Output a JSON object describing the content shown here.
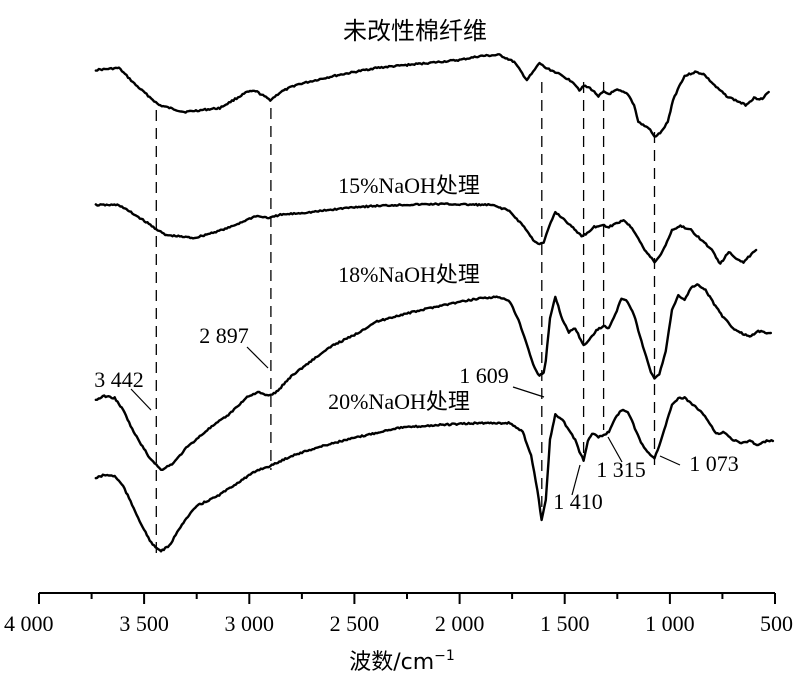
{
  "chart_data": {
    "type": "line",
    "x_axis": {
      "label_text": "波数/cm",
      "label_superscript": "−1",
      "range": [
        4000,
        500
      ],
      "ticks": [
        4000,
        3500,
        3000,
        2500,
        2000,
        1500,
        1000,
        500
      ],
      "tick_labels": [
        "4 000",
        "3 500",
        "3 000",
        "2 500",
        "2 000",
        "1 500",
        "1 000",
        "500"
      ]
    },
    "grid": false,
    "series": [
      {
        "name": "未改性棉纤维",
        "points": [
          [
            3730,
            70
          ],
          [
            3620,
            68
          ],
          [
            3540,
            85
          ],
          [
            3430,
            105
          ],
          [
            3310,
            112
          ],
          [
            3140,
            108
          ],
          [
            3010,
            92
          ],
          [
            2970,
            91
          ],
          [
            2900,
            100
          ],
          [
            2850,
            92
          ],
          [
            2780,
            85
          ],
          [
            2600,
            76
          ],
          [
            2400,
            68
          ],
          [
            2200,
            64
          ],
          [
            2000,
            60
          ],
          [
            1900,
            56
          ],
          [
            1810,
            55
          ],
          [
            1740,
            62
          ],
          [
            1680,
            80
          ],
          [
            1650,
            72
          ],
          [
            1620,
            63
          ],
          [
            1590,
            68
          ],
          [
            1545,
            72
          ],
          [
            1460,
            82
          ],
          [
            1430,
            90
          ],
          [
            1410,
            86
          ],
          [
            1380,
            88
          ],
          [
            1340,
            96
          ],
          [
            1315,
            92
          ],
          [
            1290,
            94
          ],
          [
            1250,
            90
          ],
          [
            1200,
            94
          ],
          [
            1170,
            105
          ],
          [
            1150,
            122
          ],
          [
            1120,
            126
          ],
          [
            1100,
            128
          ],
          [
            1073,
            137
          ],
          [
            1040,
            132
          ],
          [
            1010,
            122
          ],
          [
            985,
            100
          ],
          [
            955,
            86
          ],
          [
            930,
            76
          ],
          [
            880,
            72
          ],
          [
            840,
            74
          ],
          [
            780,
            87
          ],
          [
            730,
            96
          ],
          [
            680,
            101
          ],
          [
            640,
            105
          ],
          [
            600,
            98
          ],
          [
            560,
            99
          ],
          [
            530,
            92
          ]
        ]
      },
      {
        "name": "15%NaOH处理",
        "points": [
          [
            3730,
            205
          ],
          [
            3620,
            205
          ],
          [
            3520,
            218
          ],
          [
            3400,
            235
          ],
          [
            3260,
            238
          ],
          [
            3100,
            228
          ],
          [
            2970,
            216
          ],
          [
            2900,
            218
          ],
          [
            2860,
            215
          ],
          [
            2700,
            212
          ],
          [
            2500,
            207
          ],
          [
            2300,
            205
          ],
          [
            2100,
            204
          ],
          [
            1850,
            205
          ],
          [
            1770,
            210
          ],
          [
            1700,
            225
          ],
          [
            1650,
            240
          ],
          [
            1620,
            244
          ],
          [
            1600,
            243
          ],
          [
            1580,
            230
          ],
          [
            1545,
            212
          ],
          [
            1500,
            220
          ],
          [
            1460,
            228
          ],
          [
            1420,
            236
          ],
          [
            1400,
            234
          ],
          [
            1360,
            227
          ],
          [
            1320,
            225
          ],
          [
            1290,
            227
          ],
          [
            1260,
            224
          ],
          [
            1220,
            220
          ],
          [
            1180,
            228
          ],
          [
            1150,
            238
          ],
          [
            1120,
            250
          ],
          [
            1073,
            262
          ],
          [
            1050,
            257
          ],
          [
            1020,
            245
          ],
          [
            990,
            230
          ],
          [
            950,
            226
          ],
          [
            900,
            230
          ],
          [
            850,
            240
          ],
          [
            800,
            250
          ],
          [
            760,
            264
          ],
          [
            720,
            252
          ],
          [
            690,
            258
          ],
          [
            650,
            262
          ],
          [
            620,
            256
          ],
          [
            590,
            250
          ]
        ]
      },
      {
        "name": "18%NaOH处理",
        "points": [
          [
            3730,
            400
          ],
          [
            3690,
            396
          ],
          [
            3640,
            398
          ],
          [
            3600,
            410
          ],
          [
            3550,
            432
          ],
          [
            3480,
            456
          ],
          [
            3420,
            470
          ],
          [
            3360,
            463
          ],
          [
            3300,
            448
          ],
          [
            3200,
            430
          ],
          [
            3100,
            415
          ],
          [
            3010,
            397
          ],
          [
            2960,
            392
          ],
          [
            2910,
            396
          ],
          [
            2870,
            392
          ],
          [
            2800,
            376
          ],
          [
            2700,
            360
          ],
          [
            2600,
            345
          ],
          [
            2500,
            335
          ],
          [
            2400,
            322
          ],
          [
            2300,
            316
          ],
          [
            2200,
            311
          ],
          [
            2100,
            306
          ],
          [
            2000,
            302
          ],
          [
            1900,
            298
          ],
          [
            1810,
            297
          ],
          [
            1760,
            302
          ],
          [
            1720,
            320
          ],
          [
            1680,
            345
          ],
          [
            1650,
            365
          ],
          [
            1620,
            376
          ],
          [
            1600,
            372
          ],
          [
            1590,
            360
          ],
          [
            1570,
            318
          ],
          [
            1545,
            297
          ],
          [
            1510,
            320
          ],
          [
            1480,
            332
          ],
          [
            1450,
            328
          ],
          [
            1430,
            337
          ],
          [
            1410,
            345
          ],
          [
            1390,
            342
          ],
          [
            1350,
            330
          ],
          [
            1315,
            326
          ],
          [
            1290,
            328
          ],
          [
            1260,
            315
          ],
          [
            1230,
            298
          ],
          [
            1200,
            302
          ],
          [
            1170,
            315
          ],
          [
            1150,
            330
          ],
          [
            1120,
            352
          ],
          [
            1090,
            372
          ],
          [
            1073,
            378
          ],
          [
            1050,
            374
          ],
          [
            1020,
            352
          ],
          [
            990,
            310
          ],
          [
            960,
            295
          ],
          [
            930,
            300
          ],
          [
            900,
            288
          ],
          [
            870,
            284
          ],
          [
            830,
            290
          ],
          [
            790,
            304
          ],
          [
            750,
            316
          ],
          [
            700,
            328
          ],
          [
            660,
            333
          ],
          [
            620,
            337
          ],
          [
            580,
            331
          ],
          [
            540,
            333
          ],
          [
            520,
            333
          ]
        ]
      },
      {
        "name": "20%NaOH处理",
        "points": [
          [
            3730,
            478
          ],
          [
            3690,
            475
          ],
          [
            3640,
            476
          ],
          [
            3600,
            486
          ],
          [
            3550,
            508
          ],
          [
            3500,
            530
          ],
          [
            3460,
            545
          ],
          [
            3420,
            551
          ],
          [
            3380,
            546
          ],
          [
            3320,
            524
          ],
          [
            3250,
            506
          ],
          [
            3150,
            496
          ],
          [
            3050,
            482
          ],
          [
            2960,
            470
          ],
          [
            2900,
            466
          ],
          [
            2800,
            456
          ],
          [
            2700,
            449
          ],
          [
            2600,
            443
          ],
          [
            2500,
            438
          ],
          [
            2400,
            433
          ],
          [
            2300,
            428
          ],
          [
            2100,
            425
          ],
          [
            1900,
            423
          ],
          [
            1760,
            423
          ],
          [
            1700,
            432
          ],
          [
            1660,
            455
          ],
          [
            1630,
            490
          ],
          [
            1610,
            520
          ],
          [
            1590,
            500
          ],
          [
            1570,
            440
          ],
          [
            1545,
            415
          ],
          [
            1510,
            420
          ],
          [
            1480,
            430
          ],
          [
            1450,
            440
          ],
          [
            1430,
            452
          ],
          [
            1410,
            460
          ],
          [
            1390,
            442
          ],
          [
            1370,
            433
          ],
          [
            1340,
            437
          ],
          [
            1315,
            435
          ],
          [
            1290,
            432
          ],
          [
            1260,
            418
          ],
          [
            1230,
            410
          ],
          [
            1200,
            412
          ],
          [
            1180,
            420
          ],
          [
            1160,
            432
          ],
          [
            1130,
            445
          ],
          [
            1100,
            453
          ],
          [
            1073,
            458
          ],
          [
            1050,
            445
          ],
          [
            1020,
            425
          ],
          [
            990,
            405
          ],
          [
            960,
            398
          ],
          [
            930,
            398
          ],
          [
            900,
            403
          ],
          [
            860,
            410
          ],
          [
            820,
            420
          ],
          [
            780,
            434
          ],
          [
            740,
            432
          ],
          [
            700,
            440
          ],
          [
            660,
            443
          ],
          [
            620,
            441
          ],
          [
            580,
            445
          ],
          [
            540,
            441
          ],
          [
            510,
            441
          ]
        ]
      }
    ],
    "peaks": [
      {
        "wavenumber": 3442,
        "label": "3 442"
      },
      {
        "wavenumber": 2897,
        "label": "2 897"
      },
      {
        "wavenumber": 1609,
        "label": "1 609"
      },
      {
        "wavenumber": 1410,
        "label": "1 410"
      },
      {
        "wavenumber": 1315,
        "label": "1 315"
      },
      {
        "wavenumber": 1073,
        "label": "1 073"
      }
    ]
  }
}
